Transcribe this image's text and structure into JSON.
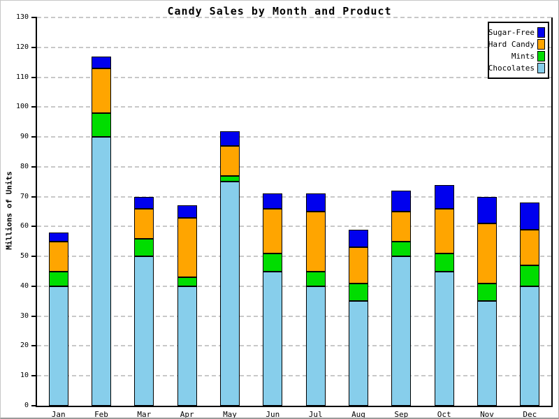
{
  "title": "Candy Sales by Month and Product",
  "y_axis": {
    "label": "Millions of Units",
    "min": 0,
    "max": 130,
    "step": 10
  },
  "legend": {
    "position": "top-right",
    "items": [
      {
        "label": "Sugar-Free",
        "color": "#0000ee"
      },
      {
        "label": "Hard Candy",
        "color": "#ffa500"
      },
      {
        "label": "Mints",
        "color": "#00dd00"
      },
      {
        "label": "Chocolates",
        "color": "#87ceeb"
      }
    ]
  },
  "chart_data": {
    "type": "bar",
    "stacked": true,
    "title": "Candy Sales by Month and Product",
    "xlabel": "",
    "ylabel": "Millions of Units",
    "ylim": [
      0,
      130
    ],
    "grid": "horizontal-dashed",
    "gridline_color": "#c8c8c8",
    "categories": [
      "Jan",
      "Feb",
      "Mar",
      "Apr",
      "May",
      "Jun",
      "Jul",
      "Aug",
      "Sep",
      "Oct",
      "Nov",
      "Dec"
    ],
    "series": [
      {
        "name": "Chocolates",
        "color": "#87ceeb",
        "values": [
          40,
          90,
          50,
          40,
          75,
          45,
          40,
          35,
          50,
          45,
          35,
          40
        ]
      },
      {
        "name": "Mints",
        "color": "#00dd00",
        "values": [
          5,
          8,
          6,
          3,
          2,
          6,
          5,
          6,
          5,
          6,
          6,
          7
        ]
      },
      {
        "name": "Hard Candy",
        "color": "#ffa500",
        "values": [
          10,
          15,
          10,
          20,
          10,
          15,
          20,
          12,
          10,
          15,
          20,
          12
        ]
      },
      {
        "name": "Sugar-Free",
        "color": "#0000ee",
        "values": [
          3,
          4,
          4,
          4,
          5,
          5,
          6,
          6,
          7,
          8,
          9,
          9
        ]
      }
    ],
    "totals": [
      58,
      117,
      70,
      67,
      92,
      71,
      71,
      59,
      72,
      74,
      70,
      68
    ]
  }
}
